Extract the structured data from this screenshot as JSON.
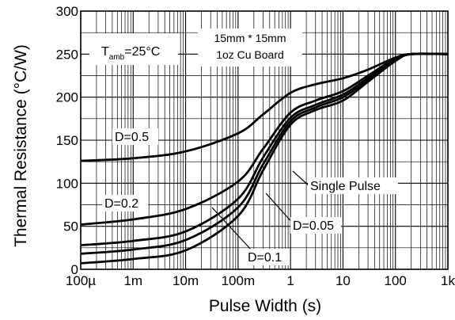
{
  "chart_data": {
    "type": "line",
    "title": "",
    "xlabel": "Pulse Width (s)",
    "ylabel": "Thermal Resistance (°C/W)",
    "x_scale": "log",
    "xlim": [
      0.0001,
      1000
    ],
    "ylim": [
      0,
      300
    ],
    "x_ticks": [
      {
        "value": 0.0001,
        "label": "100µ"
      },
      {
        "value": 0.001,
        "label": "1m"
      },
      {
        "value": 0.01,
        "label": "10m"
      },
      {
        "value": 0.1,
        "label": "100m"
      },
      {
        "value": 1,
        "label": "1"
      },
      {
        "value": 10,
        "label": "10"
      },
      {
        "value": 100,
        "label": "100"
      },
      {
        "value": 1000,
        "label": "1k"
      }
    ],
    "y_ticks": [
      0,
      50,
      100,
      150,
      200,
      250,
      300
    ],
    "grid": true,
    "ambient_label": {
      "symbol": "T",
      "subscript": "amb",
      "value": "=25°C"
    },
    "board_label": [
      "15mm * 15mm",
      "1oz Cu Board"
    ],
    "series": [
      {
        "name": "D=0.5",
        "x": [
          0.0001,
          0.001,
          0.01,
          0.1,
          0.3,
          1,
          3,
          10,
          30,
          100,
          200,
          1000
        ],
        "y": [
          126,
          129,
          137,
          158,
          180,
          205,
          215,
          222,
          232,
          246,
          250,
          250
        ]
      },
      {
        "name": "D=0.2",
        "x": [
          0.0001,
          0.001,
          0.01,
          0.1,
          0.3,
          1,
          3,
          10,
          30,
          100,
          200,
          1000
        ],
        "y": [
          52,
          58,
          70,
          102,
          140,
          182,
          196,
          207,
          225,
          245,
          250,
          250
        ]
      },
      {
        "name": "D=0.1",
        "x": [
          0.0001,
          0.001,
          0.01,
          0.1,
          0.3,
          1,
          3,
          10,
          30,
          100,
          200,
          1000
        ],
        "y": [
          28,
          33,
          44,
          82,
          130,
          176,
          191,
          203,
          222,
          244,
          250,
          250
        ]
      },
      {
        "name": "D=0.05",
        "x": [
          0.0001,
          0.001,
          0.01,
          0.1,
          0.3,
          1,
          3,
          10,
          30,
          100,
          200,
          1000
        ],
        "y": [
          18,
          23,
          34,
          72,
          122,
          172,
          188,
          200,
          220,
          243,
          250,
          250
        ]
      },
      {
        "name": "Single Pulse",
        "x": [
          0.0001,
          0.001,
          0.01,
          0.1,
          0.3,
          1,
          3,
          10,
          30,
          100,
          200,
          1000
        ],
        "y": [
          7,
          12,
          22,
          62,
          115,
          168,
          185,
          196,
          218,
          242,
          250,
          250
        ]
      }
    ],
    "annotations": [
      {
        "text": "D=0.5",
        "series": "D=0.5"
      },
      {
        "text": "D=0.2",
        "series": "D=0.2"
      },
      {
        "text": "Single Pulse",
        "series": "Single Pulse"
      },
      {
        "text": "D=0.05",
        "series": "D=0.05"
      },
      {
        "text": "D=0.1",
        "series": "D=0.1"
      }
    ]
  }
}
